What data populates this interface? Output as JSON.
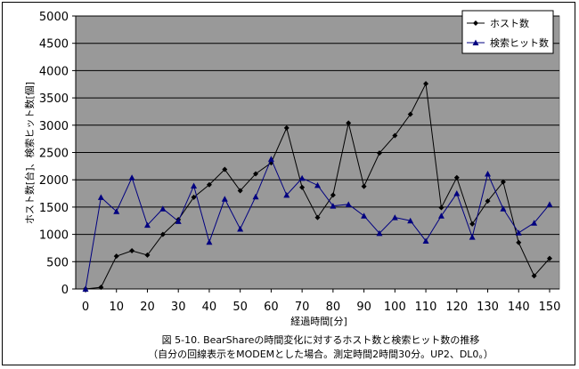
{
  "chart_data": {
    "type": "line",
    "title": "",
    "xlabel": "経過時間[分]",
    "ylabel": "ホスト数[台]、検索ヒット数[個]",
    "xlim": [
      0,
      150
    ],
    "ylim": [
      0,
      5000
    ],
    "x_ticks": [
      0,
      10,
      20,
      30,
      40,
      50,
      60,
      70,
      80,
      90,
      100,
      110,
      120,
      130,
      140,
      150
    ],
    "y_ticks": [
      0,
      500,
      1000,
      1500,
      2000,
      2500,
      3000,
      3500,
      4000,
      4500,
      5000
    ],
    "grid": "horizontal",
    "legend_position": "top-right",
    "plot_background": "#999999",
    "x": [
      0,
      5,
      10,
      15,
      20,
      25,
      30,
      35,
      40,
      45,
      50,
      55,
      60,
      65,
      70,
      75,
      80,
      85,
      90,
      95,
      100,
      105,
      110,
      115,
      120,
      125,
      130,
      135,
      140,
      145,
      150
    ],
    "series": [
      {
        "name": "ホスト数",
        "marker": "diamond",
        "color": "#000000",
        "values": [
          0,
          30,
          600,
          700,
          620,
          1000,
          1270,
          1680,
          1910,
          2190,
          1800,
          2110,
          2310,
          2950,
          1860,
          1310,
          1720,
          3040,
          1880,
          2490,
          2810,
          3200,
          3760,
          1490,
          2040,
          1190,
          1610,
          1960,
          850,
          240,
          560
        ]
      },
      {
        "name": "検索ヒット数",
        "marker": "triangle",
        "color": "#000080",
        "values": [
          0,
          1680,
          1420,
          2040,
          1170,
          1470,
          1240,
          1890,
          860,
          1650,
          1100,
          1690,
          2380,
          1720,
          2030,
          1900,
          1520,
          1550,
          1340,
          1020,
          1310,
          1250,
          880,
          1340,
          1750,
          950,
          2110,
          1470,
          1030,
          1210,
          1550
        ]
      }
    ]
  },
  "caption": {
    "line1": "図 5-10. BearShareの時間変化に対するホスト数と検索ヒット数の推移",
    "line2": "（自分の回線表示をMODEMとした場合。測定時間2時間30分。UP2、DL0。）"
  }
}
